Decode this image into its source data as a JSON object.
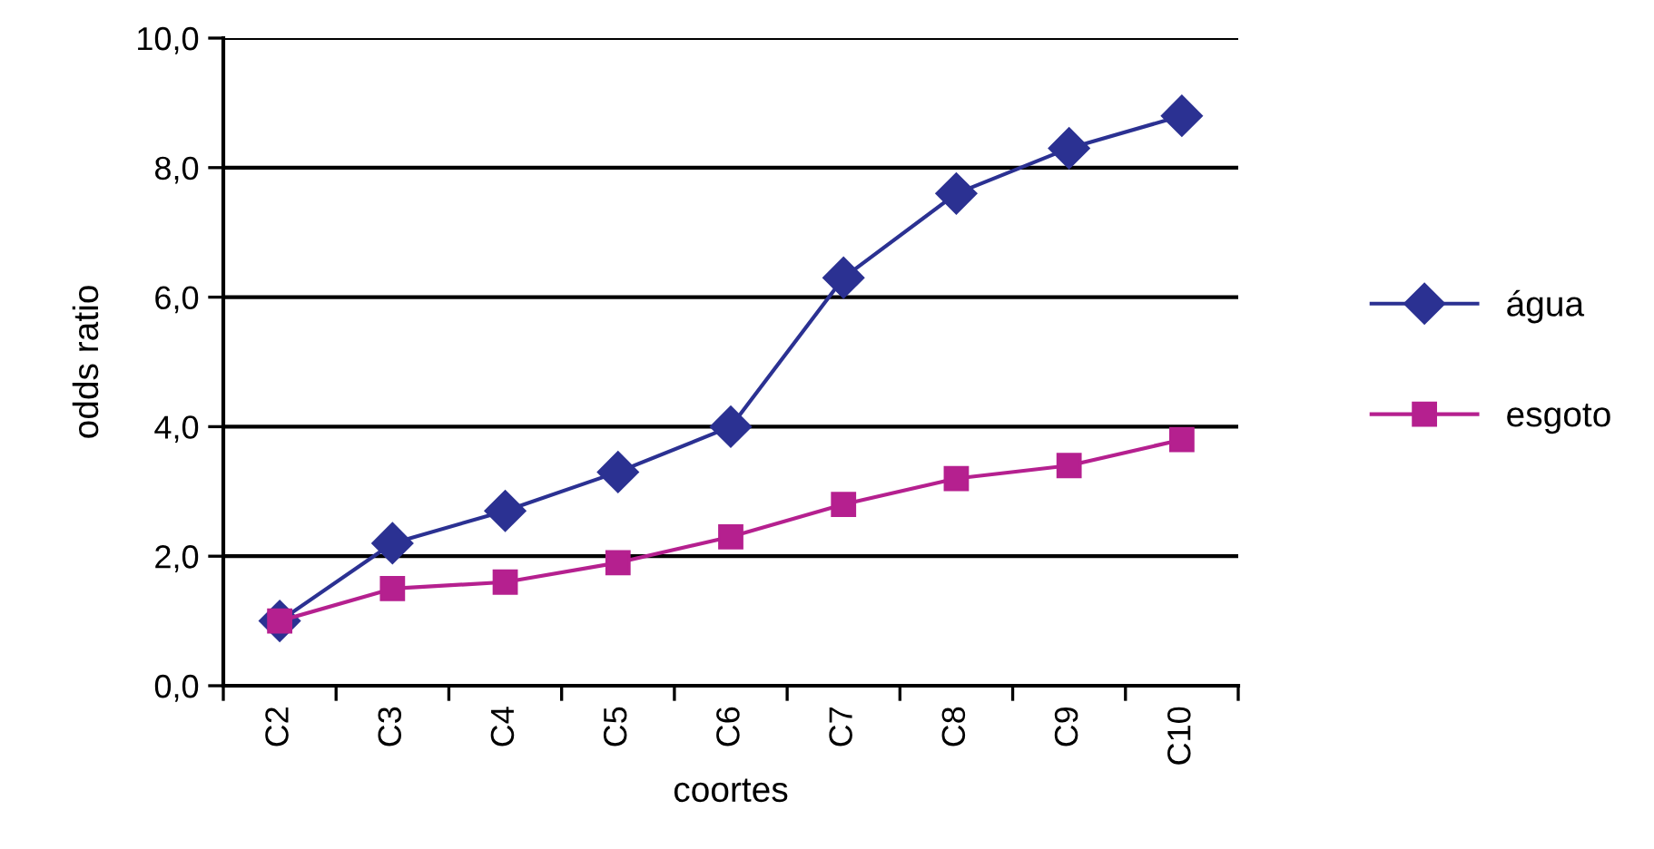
{
  "chart_data": {
    "type": "line",
    "xlabel": "coortes",
    "ylabel": "odds ratio",
    "categories": [
      "C2",
      "C3",
      "C4",
      "C5",
      "C6",
      "C7",
      "C8",
      "C9",
      "C10"
    ],
    "series": [
      {
        "name": "água",
        "color": "#2b3192",
        "marker": "diamond",
        "values": [
          1.0,
          2.2,
          2.7,
          3.3,
          4.0,
          6.3,
          7.6,
          8.3,
          8.8
        ]
      },
      {
        "name": "esgoto",
        "color": "#b5208f",
        "marker": "square",
        "values": [
          1.0,
          1.5,
          1.6,
          1.9,
          2.3,
          2.8,
          3.2,
          3.4,
          3.8
        ]
      }
    ],
    "ylim": [
      0,
      10
    ],
    "yticks": [
      {
        "value": 0,
        "label": "0,0"
      },
      {
        "value": 2,
        "label": "2,0"
      },
      {
        "value": 4,
        "label": "4,0"
      },
      {
        "value": 6,
        "label": "6,0"
      },
      {
        "value": 8,
        "label": "8,0"
      },
      {
        "value": 10,
        "label": "10,0"
      }
    ],
    "grid": "y",
    "legend": "right",
    "line_style": "solid"
  }
}
